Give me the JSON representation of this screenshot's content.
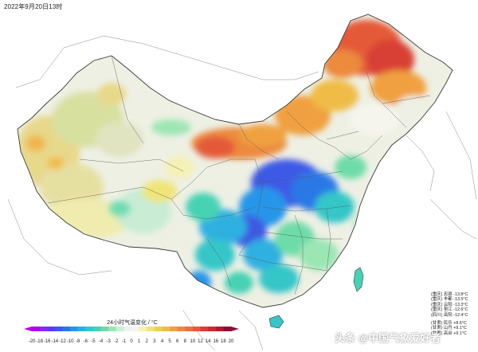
{
  "title": "2022年9月20日13时",
  "legend": {
    "title": "24小时气温变化 / °C",
    "ticks": [
      "-20",
      "-18",
      "-16",
      "-14",
      "-12",
      "-10",
      "-8",
      "-6",
      "-5",
      "-4",
      "-3",
      "-2",
      "-1",
      "0",
      "1",
      "2",
      "3",
      "4",
      "5",
      "6",
      "8",
      "10",
      "12",
      "14",
      "16",
      "18",
      "20"
    ],
    "colors": [
      "#b400e6",
      "#8c28f0",
      "#5a3cf0",
      "#3c5ae6",
      "#2a78e6",
      "#2896e8",
      "#2eb0e0",
      "#34c6c8",
      "#46d2b4",
      "#6edca8",
      "#9ce6b4",
      "#c8f0d4",
      "#f0f0f0",
      "#f5f5ee",
      "#f5f0b4",
      "#f0e478",
      "#ecd250",
      "#f0bc46",
      "#f0a040",
      "#ec8a3c",
      "#e8723a",
      "#e45a38",
      "#d84034",
      "#c82c30",
      "#b01c2e",
      "#900c38"
    ]
  },
  "stations": [
    {
      "rows": [
        "(重庆) 忠县   -13.8°C",
        "(重庆) 丰都   -13.5°C",
        "(重庆) 云阳   -13.3°C",
        "(重庆) 垫江   -12.6°C",
        "(四川) 岳阳   -12.4°C"
      ]
    },
    {
      "rows": [
        "(甘肃) 民乐   +8.6°C",
        "(甘肃) 山丹   +9.1°C",
        "(甘肃) 高台   +9.1°C"
      ]
    }
  ],
  "watermark": "头条 @中国气象爱好者",
  "colors": {
    "province_line": "#5a5a5a",
    "country_line": "#3a3a3a",
    "background": "#ffffff"
  }
}
